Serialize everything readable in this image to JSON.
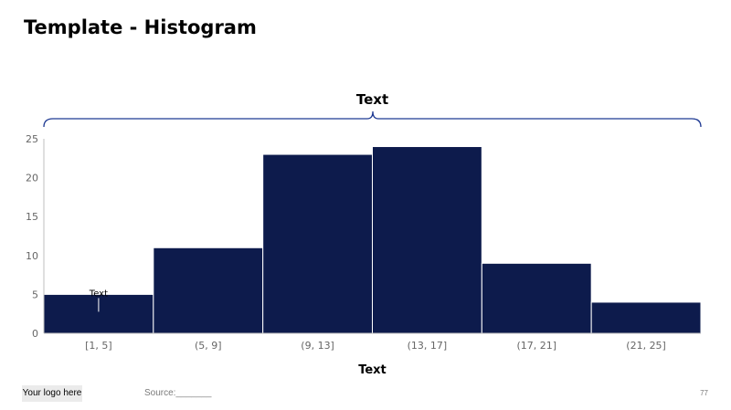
{
  "slide": {
    "title": "Template - Histogram",
    "logo_text": "Your logo here",
    "source_text": "Source:_______",
    "page_number": "77"
  },
  "colors": {
    "bar": "#0d1b4c",
    "bracket": "#1f3a93",
    "axis": "#bfbfbf",
    "tick_text": "#666666"
  },
  "chart_data": {
    "type": "bar",
    "title": "Text",
    "xlabel": "Text",
    "ylabel": "",
    "categories": [
      "[1, 5]",
      "(5, 9]",
      "(9, 13]",
      "(13, 17]",
      "(17, 21]",
      "(21, 25]"
    ],
    "values": [
      5,
      11,
      23,
      24,
      9,
      4
    ],
    "ylim": [
      0,
      25
    ],
    "yticks": [
      0,
      5,
      10,
      15,
      20,
      25
    ],
    "grid": false,
    "annotation": {
      "category": "[1, 5]",
      "value": 5,
      "text": "Text"
    }
  }
}
